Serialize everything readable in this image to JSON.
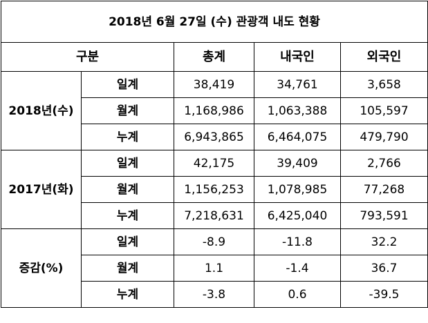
{
  "title": "2018년 6월 27일 (수) 관광객 내도 현황",
  "headers": {
    "category": "구분",
    "total": "총계",
    "domestic": "내국인",
    "foreign": "외국인"
  },
  "groups": [
    {
      "label": "2018년(수)",
      "rows": [
        {
          "metric": "일계",
          "total": "38,419",
          "domestic": "34,761",
          "foreign": "3,658"
        },
        {
          "metric": "월계",
          "total": "1,168,986",
          "domestic": "1,063,388",
          "foreign": "105,597"
        },
        {
          "metric": "누계",
          "total": "6,943,865",
          "domestic": "6,464,075",
          "foreign": "479,790"
        }
      ]
    },
    {
      "label": "2017년(화)",
      "rows": [
        {
          "metric": "일계",
          "total": "42,175",
          "domestic": "39,409",
          "foreign": "2,766"
        },
        {
          "metric": "월계",
          "total": "1,156,253",
          "domestic": "1,078,985",
          "foreign": "77,268"
        },
        {
          "metric": "누계",
          "total": "7,218,631",
          "domestic": "6,425,040",
          "foreign": "793,591"
        }
      ]
    },
    {
      "label": "증감(%)",
      "rows": [
        {
          "metric": "일계",
          "total": "-8.9",
          "domestic": "-11.8",
          "foreign": "32.2"
        },
        {
          "metric": "월계",
          "total": "1.1",
          "domestic": "-1.4",
          "foreign": "36.7"
        },
        {
          "metric": "누계",
          "total": "-3.8",
          "domestic": "0.6",
          "foreign": "-39.5"
        }
      ]
    }
  ]
}
